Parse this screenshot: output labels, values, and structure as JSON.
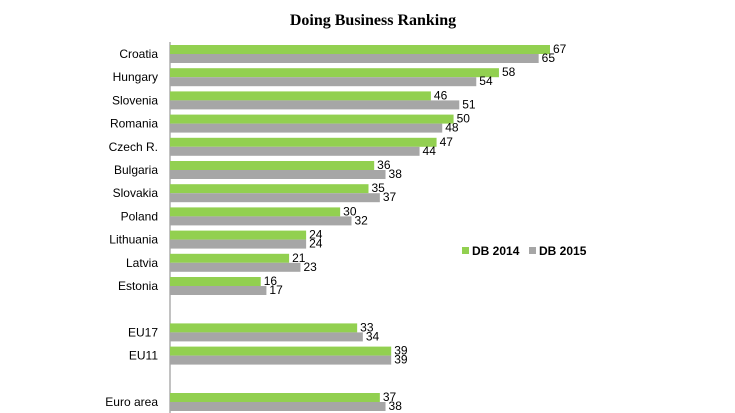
{
  "colors": {
    "db2014": "#92d050",
    "db2015": "#a6a6a6",
    "axis": "#868686"
  },
  "chart_data": {
    "type": "bar",
    "orientation": "horizontal",
    "title": "Doing Business Ranking",
    "xlabel": "",
    "ylabel": "",
    "xlim": [
      0,
      70
    ],
    "grid": false,
    "legend_position": "right",
    "categories": [
      "Croatia",
      "Hungary",
      "Slovenia",
      "Romania",
      "Czech R.",
      "Bulgaria",
      "Slovakia",
      "Poland",
      "Lithuania",
      "Latvia",
      "Estonia",
      "",
      "EU17",
      "EU11",
      "",
      "Euro area"
    ],
    "series": [
      {
        "name": "DB 2014",
        "values": [
          67,
          58,
          46,
          50,
          47,
          36,
          35,
          30,
          24,
          21,
          16,
          null,
          33,
          39,
          null,
          37
        ]
      },
      {
        "name": "DB 2015",
        "values": [
          65,
          54,
          51,
          48,
          44,
          38,
          37,
          32,
          24,
          23,
          17,
          null,
          34,
          39,
          null,
          38
        ]
      }
    ]
  }
}
